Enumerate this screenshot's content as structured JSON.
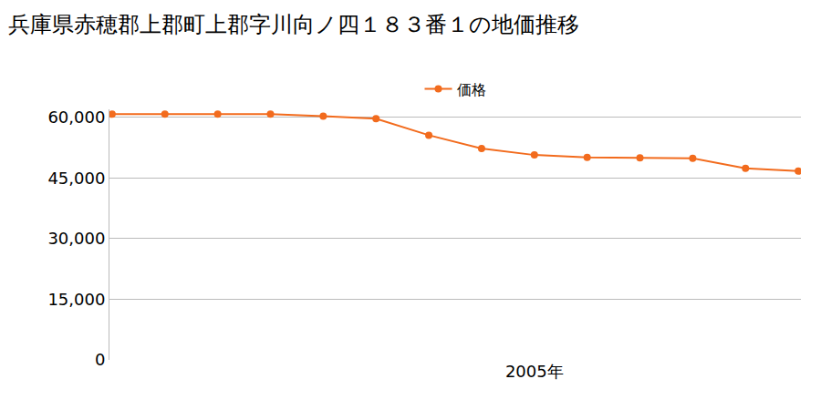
{
  "chart_data": {
    "type": "line",
    "title": "兵庫県赤穂郡上郡町上郡字川向ノ四１８３番１の地価推移",
    "categories": [
      null,
      null,
      null,
      null,
      null,
      null,
      null,
      null,
      "2005年",
      null,
      null,
      null,
      null,
      null
    ],
    "series": [
      {
        "name": "価格",
        "color": "#f26b1d",
        "values": [
          60800,
          60800,
          60800,
          60800,
          60300,
          59700,
          55600,
          52300,
          50700,
          50100,
          50000,
          49900,
          47400,
          46700
        ]
      }
    ],
    "ylim": [
      0,
      62000
    ],
    "yticks": [
      0,
      {
        "value": 15000,
        "label": "15,000"
      },
      {
        "value": 30000,
        "label": "30,000"
      },
      {
        "value": 45000,
        "label": "45,000"
      },
      {
        "value": 60000,
        "label": "60,000"
      }
    ],
    "grid": true,
    "legend": "top",
    "marker": "circle"
  }
}
